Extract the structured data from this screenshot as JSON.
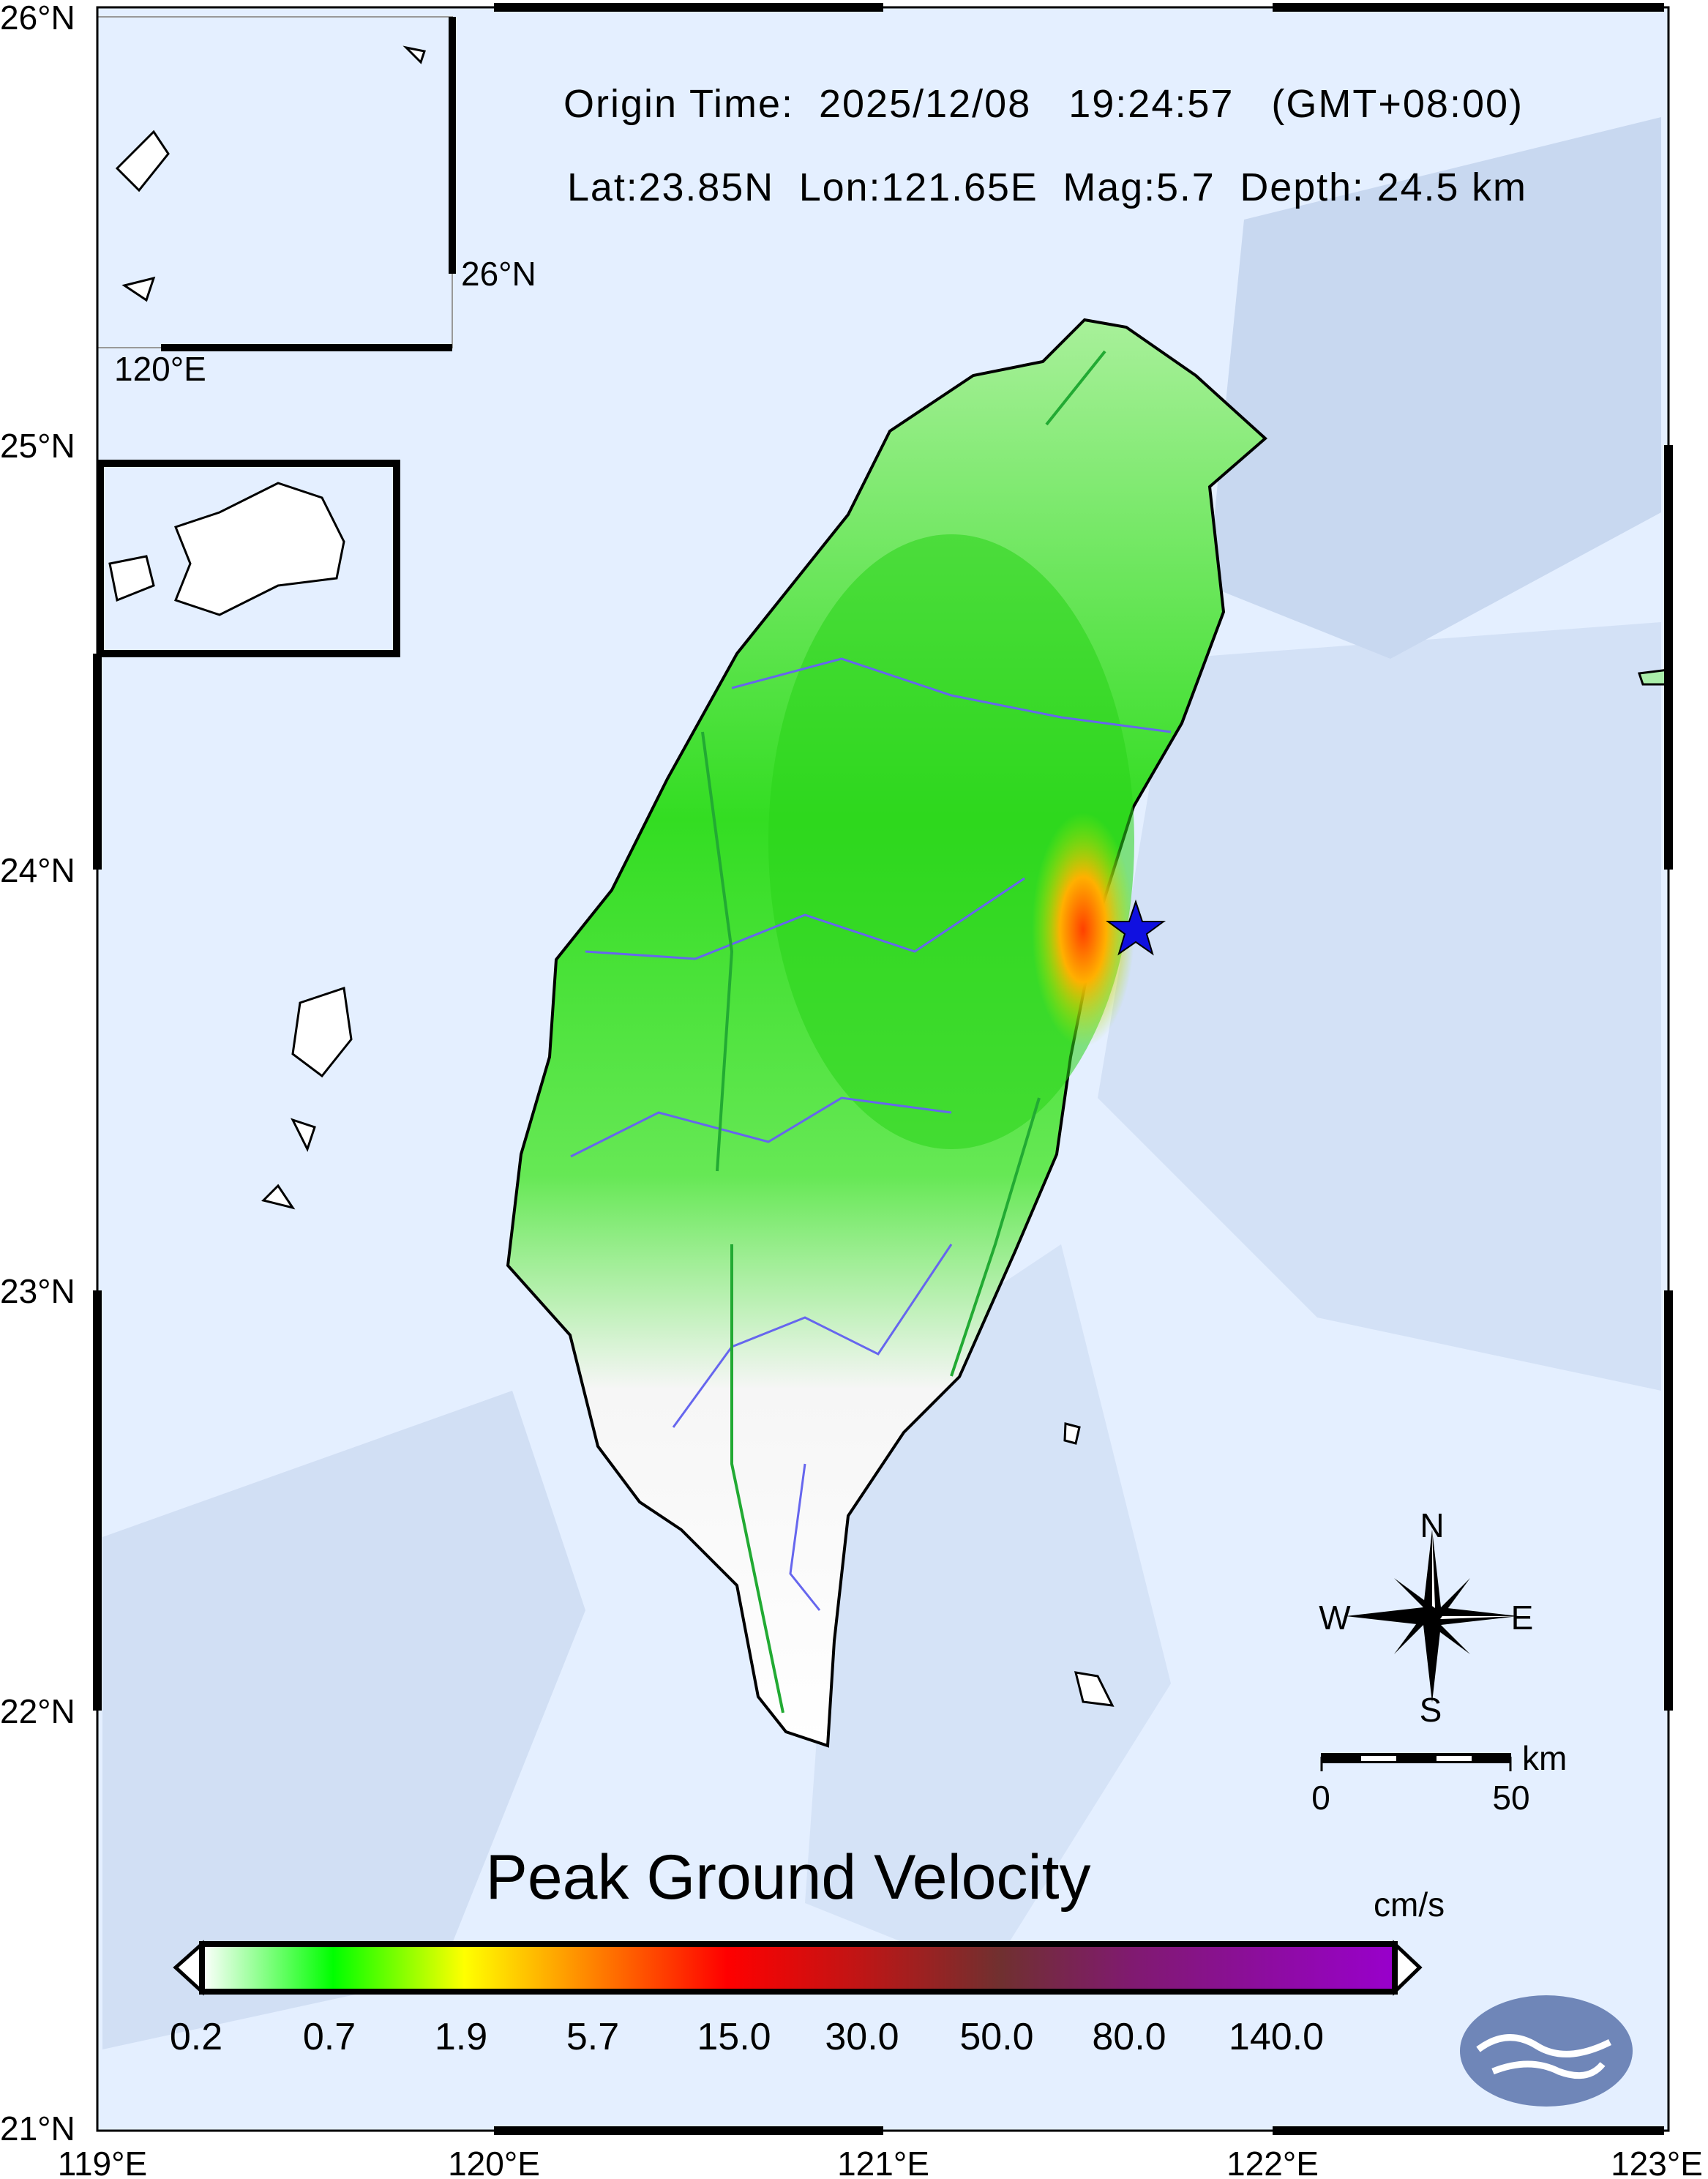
{
  "header": {
    "origin_time": "Origin Time:  2025/12/08   19:24:57   (GMT+08:00)",
    "event_info": "Lat:23.85N  Lon:121.65E  Mag:5.7  Depth: 24.5 km"
  },
  "axes": {
    "lat_labels": [
      "26°N",
      "25°N",
      "24°N",
      "23°N",
      "22°N",
      "21°N"
    ],
    "lon_labels": [
      "119°E",
      "120°E",
      "121°E",
      "122°E",
      "123°E"
    ]
  },
  "inset": {
    "lat_label": "26°N",
    "lon_label": "120°E"
  },
  "epicenter": {
    "lat": 23.85,
    "lon": 121.65,
    "icon": "star-icon",
    "color": "#1010e0"
  },
  "compass": {
    "n": "N",
    "s": "S",
    "e": "E",
    "w": "W"
  },
  "scale_bar": {
    "unit": "km",
    "start": "0",
    "end": "50"
  },
  "legend": {
    "title": "Peak Ground Velocity",
    "unit": "cm/s",
    "ticks": [
      "0.2",
      "0.7",
      "1.9",
      "5.7",
      "15.0",
      "30.0",
      "50.0",
      "80.0",
      "140.0"
    ],
    "colors": [
      "#ffffff",
      "#00ff00",
      "#ffff00",
      "#ff8000",
      "#ff0000",
      "#b01818",
      "#703030",
      "#802070",
      "#9900cc"
    ]
  },
  "colors": {
    "sea": "#e4efff",
    "land_low": "#ffffff",
    "land_green": "#33dd22",
    "fault": "#22aa33",
    "river": "#6666ee"
  }
}
